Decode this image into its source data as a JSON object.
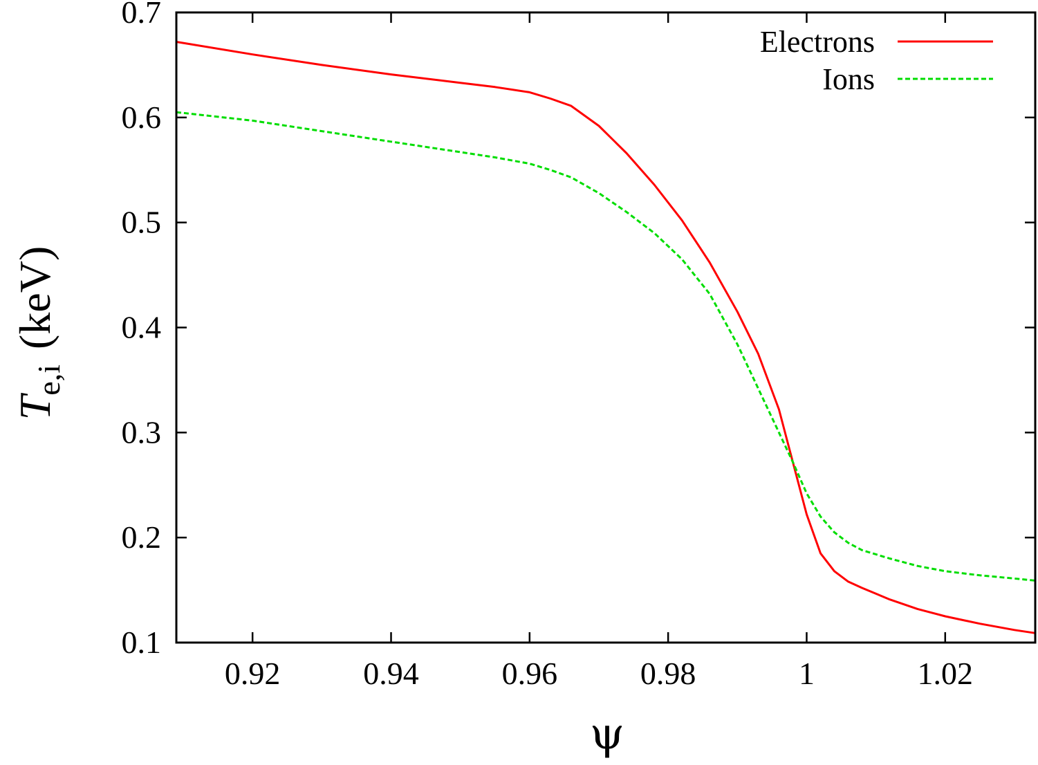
{
  "chart_data": {
    "type": "line",
    "xlabel": "ψ",
    "ylabel": {
      "symbol": "T",
      "subscript": "e,i",
      "unit": "(keV)"
    },
    "xlim": [
      0.909,
      1.033
    ],
    "ylim": [
      0.1,
      0.7
    ],
    "xticks": [
      0.92,
      0.94,
      0.96,
      0.98,
      1,
      1.02
    ],
    "xtick_labels": [
      "0.92",
      "0.94",
      "0.96",
      "0.98",
      "1",
      "1.02"
    ],
    "yticks": [
      0.1,
      0.2,
      0.3,
      0.4,
      0.5,
      0.6,
      0.7
    ],
    "ytick_labels": [
      "0.1",
      "0.2",
      "0.3",
      "0.4",
      "0.5",
      "0.6",
      "0.7"
    ],
    "grid": false,
    "legend_position": "top-right",
    "series": [
      {
        "name": "Electrons",
        "color": "#ff0000",
        "dash": "solid",
        "x": [
          0.909,
          0.92,
          0.93,
          0.94,
          0.95,
          0.955,
          0.96,
          0.963,
          0.966,
          0.97,
          0.974,
          0.978,
          0.982,
          0.986,
          0.99,
          0.993,
          0.996,
          0.998,
          1.0,
          1.002,
          1.004,
          1.006,
          1.008,
          1.012,
          1.016,
          1.02,
          1.025,
          1.03,
          1.033
        ],
        "y": [
          0.672,
          0.66,
          0.65,
          0.641,
          0.633,
          0.629,
          0.624,
          0.618,
          0.611,
          0.592,
          0.566,
          0.536,
          0.502,
          0.462,
          0.415,
          0.375,
          0.322,
          0.272,
          0.222,
          0.185,
          0.168,
          0.158,
          0.152,
          0.141,
          0.132,
          0.125,
          0.118,
          0.112,
          0.109
        ]
      },
      {
        "name": "Ions",
        "color": "#00dd00",
        "dash": "dashed",
        "x": [
          0.909,
          0.92,
          0.93,
          0.94,
          0.95,
          0.955,
          0.96,
          0.963,
          0.966,
          0.97,
          0.974,
          0.978,
          0.982,
          0.986,
          0.99,
          0.993,
          0.996,
          0.998,
          1.0,
          1.002,
          1.004,
          1.006,
          1.008,
          1.012,
          1.016,
          1.02,
          1.025,
          1.03,
          1.033
        ],
        "y": [
          0.605,
          0.597,
          0.587,
          0.577,
          0.567,
          0.562,
          0.556,
          0.55,
          0.543,
          0.528,
          0.51,
          0.49,
          0.465,
          0.432,
          0.384,
          0.342,
          0.3,
          0.272,
          0.242,
          0.22,
          0.205,
          0.195,
          0.188,
          0.18,
          0.173,
          0.168,
          0.164,
          0.161,
          0.159
        ]
      }
    ]
  }
}
